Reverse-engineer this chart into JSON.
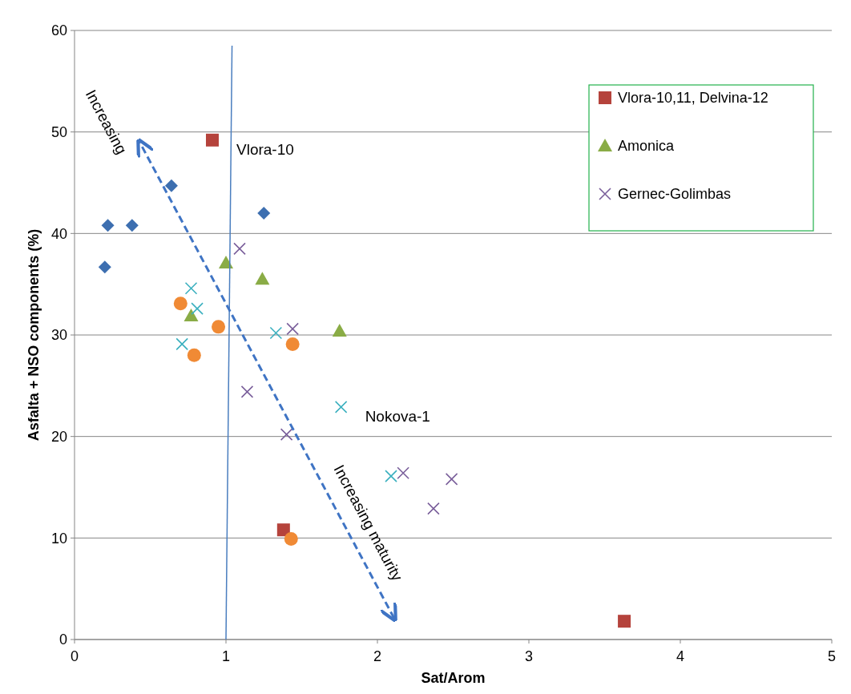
{
  "chart_data": {
    "type": "scatter",
    "xlabel": "Sat/Arom",
    "ylabel": "Asfalta + NSO components (%)",
    "xlim": [
      0,
      5
    ],
    "ylim": [
      0,
      60
    ],
    "xticks": [
      0,
      1,
      2,
      3,
      4,
      5
    ],
    "yticks": [
      0,
      10,
      20,
      30,
      40,
      50,
      60
    ],
    "grid": "y",
    "legend": "top right",
    "series": [
      {
        "color": "#3d6fb0",
        "marker": "diamond",
        "x": [
          0.22,
          0.38,
          0.64,
          1.25,
          0.2
        ],
        "values": [
          40.8,
          40.8,
          44.7,
          42.0,
          36.7
        ]
      },
      {
        "name": "Vlora-10,11, Delvina-12",
        "color": "#b5433c",
        "marker": "square",
        "x": [
          0.91,
          1.38,
          3.63
        ],
        "values": [
          49.2,
          10.8,
          1.8
        ]
      },
      {
        "name": "Amonica",
        "color": "#8aac46",
        "marker": "triangle",
        "x": [
          1.0,
          1.24,
          0.77,
          1.75
        ],
        "values": [
          37.1,
          35.5,
          31.9,
          30.4
        ]
      },
      {
        "color": "#3bb0bf",
        "marker": "cross",
        "x": [
          0.77,
          0.81,
          0.71,
          1.33,
          1.76,
          2.09
        ],
        "values": [
          34.6,
          32.6,
          29.1,
          30.2,
          22.9,
          16.1
        ]
      },
      {
        "name": "Gernec-Golimbas",
        "color": "#7a5f9b",
        "marker": "cross",
        "x": [
          1.09,
          1.44,
          1.14,
          1.4,
          2.17,
          2.37,
          2.49
        ],
        "values": [
          38.5,
          30.6,
          24.4,
          20.2,
          16.4,
          12.9,
          15.8
        ]
      },
      {
        "color": "#f08a35",
        "marker": "circle",
        "x": [
          0.7,
          0.95,
          0.79,
          1.44,
          1.43
        ],
        "values": [
          33.1,
          30.8,
          28.0,
          29.1,
          9.9
        ]
      },
      {
        "type": "line",
        "color": "#4a7ebf",
        "marker": "none",
        "x": [
          1.0,
          1.04
        ],
        "values": [
          0,
          58.5
        ]
      }
    ],
    "annotations": [
      {
        "text": "Vlora-10",
        "x": 0.91,
        "y": 49.2
      },
      {
        "text": "Nokova-1",
        "x": 1.76,
        "y": 22.9
      },
      "Increasing",
      "Increasing maturity"
    ]
  }
}
